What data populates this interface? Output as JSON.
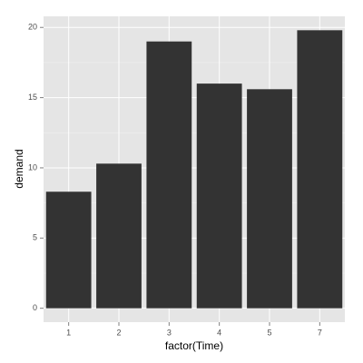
{
  "chart_data": {
    "type": "bar",
    "x_label": "factor(Time)",
    "y_label": "demand",
    "categories": [
      "1",
      "2",
      "3",
      "4",
      "5",
      "7"
    ],
    "values": [
      8.3,
      10.3,
      19.0,
      16.0,
      15.6,
      19.8
    ],
    "color": "#333333",
    "ylim": [
      -0.99,
      20.79
    ],
    "yticks": [
      0,
      5,
      10,
      15,
      20
    ],
    "grid": true
  }
}
